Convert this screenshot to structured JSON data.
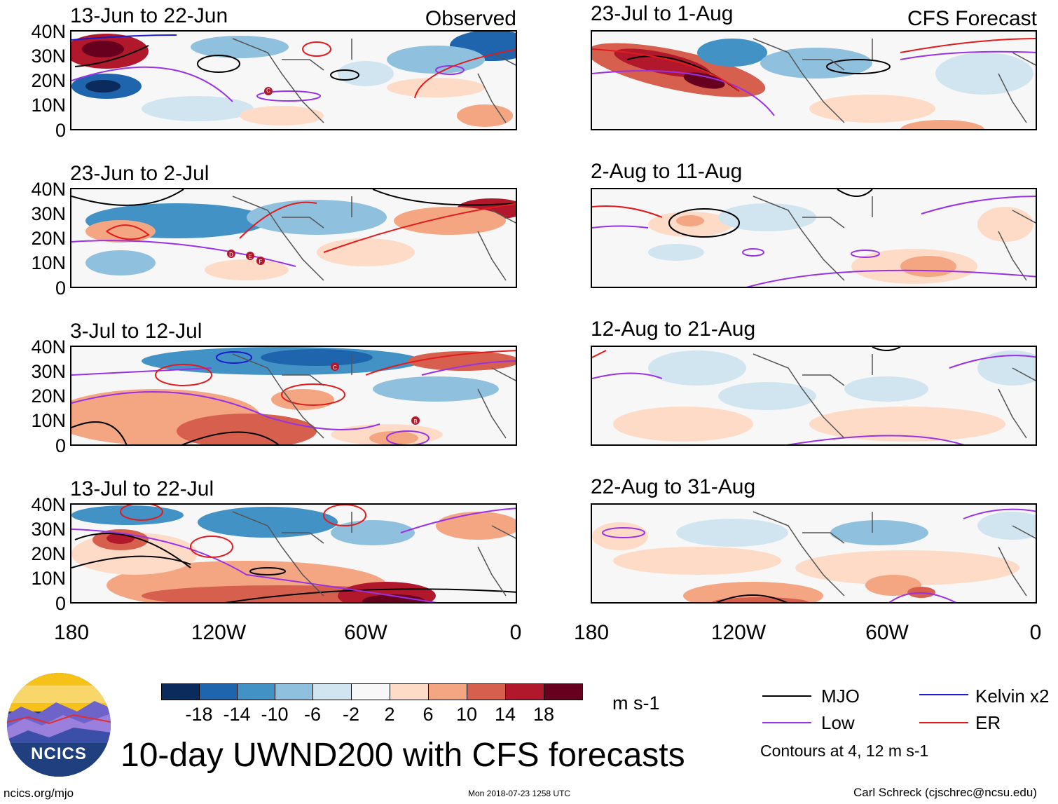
{
  "figure_title": "10-day UWND200 with CFS forecasts",
  "labels": {
    "observed": "Observed",
    "forecast": "CFS Forecast"
  },
  "panels": [
    {
      "title": "13-Jun to 22-Jun"
    },
    {
      "title": "23-Jul to 1-Aug"
    },
    {
      "title": "23-Jun to 2-Jul"
    },
    {
      "title": "2-Aug to 11-Aug"
    },
    {
      "title": "3-Jul to 12-Jul"
    },
    {
      "title": "12-Aug to 21-Aug"
    },
    {
      "title": "13-Jul to 22-Jul"
    },
    {
      "title": "22-Aug to 31-Aug"
    }
  ],
  "lat_ticks": [
    "40N",
    "30N",
    "20N",
    "10N",
    "0"
  ],
  "lon_ticks": [
    "180",
    "120W",
    "60W",
    "0"
  ],
  "storm_markers": [
    {
      "panel": 0,
      "label": "C"
    },
    {
      "panel": 2,
      "label": "D"
    },
    {
      "panel": 2,
      "label": "E"
    },
    {
      "panel": 2,
      "label": "F"
    },
    {
      "panel": 4,
      "label": "C"
    },
    {
      "panel": 4,
      "label": "B"
    }
  ],
  "colorbar": {
    "unit": "m s-1",
    "labels": [
      "-18",
      "-14",
      "-10",
      "-6",
      "-2",
      "2",
      "6",
      "10",
      "14",
      "18"
    ],
    "colors": [
      "#0b2b5c",
      "#1e65ad",
      "#4292c6",
      "#8fc1de",
      "#d1e5f0",
      "#f7f7f7",
      "#fddbc7",
      "#f4a582",
      "#d6604d",
      "#b2182b",
      "#67001f"
    ]
  },
  "legend": {
    "items": [
      {
        "label": "MJO",
        "color": "#000000"
      },
      {
        "label": "Kelvin x2",
        "color": "#1a1acc"
      },
      {
        "label": "Low",
        "color": "#9932e6"
      },
      {
        "label": "ER",
        "color": "#e31a1c"
      }
    ],
    "contour_note": "Contours at 4, 12 m s-1"
  },
  "logo_text": "NCICS",
  "footer": {
    "left": "ncics.org/mjo",
    "center": "Mon 2018-07-23 1258 UTC",
    "right": "Carl Schreck (cjschrec@ncsu.edu)"
  }
}
